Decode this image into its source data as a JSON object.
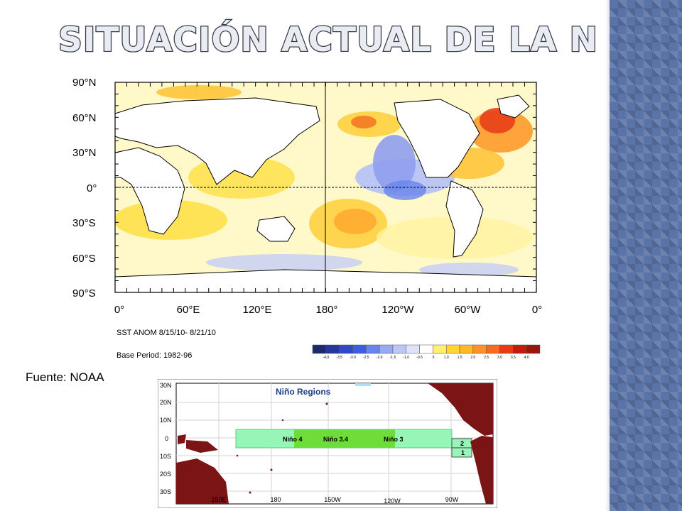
{
  "slide": {
    "title": "SITUACIÓN ACTUAL DE LA NIÑA",
    "source_note": "Fuente: NOAA"
  },
  "sst_map": {
    "lat_labels": [
      "90°N",
      "60°N",
      "30°N",
      "0°",
      "30°S",
      "60°S",
      "90°S"
    ],
    "lon_labels": [
      "0°",
      "60°E",
      "120°E",
      "180°",
      "120°W",
      "60°W",
      "0°"
    ],
    "caption_line1": "SST ANOM  8/15/10- 8/21/10",
    "caption_line2": "Base Period: 1982-96",
    "colorbar": {
      "labels": [
        "-4.0",
        "-3.5",
        "-3.0",
        "-2.5",
        "-2.0",
        "-1.5",
        "-1.0",
        "-0.5",
        ".5",
        "1.0",
        "1.5",
        "2.0",
        "2.5",
        "3.0",
        "3.5",
        "4.0"
      ],
      "colors": [
        "#1b2a6b",
        "#24379a",
        "#2f48c9",
        "#3d5ce6",
        "#6a84ee",
        "#97aaf2",
        "#bcc7f6",
        "#dde3fa",
        "#ffffff",
        "#fff06a",
        "#ffd633",
        "#ffb81f",
        "#ff9224",
        "#f86a20",
        "#e83a17",
        "#c51a10",
        "#98150d"
      ]
    }
  },
  "nino_map": {
    "title": "Niño  Regions",
    "lat_labels": [
      "30N",
      "20N",
      "10N",
      "0",
      "10S",
      "20S",
      "30S"
    ],
    "lon_labels": [
      "150E",
      "180",
      "150W",
      "120W",
      "90W"
    ],
    "regions": [
      "Niño  4",
      "Niño  3.4",
      "Niño  3",
      "2",
      "1"
    ],
    "colors": {
      "land": "#7b1515",
      "region_band": "#98f5b8",
      "region_34": "#6fdc3a",
      "grid": "#cfcfcf"
    }
  }
}
